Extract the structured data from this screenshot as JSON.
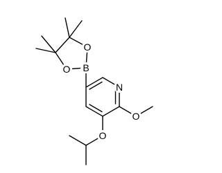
{
  "atoms": [
    {
      "label": "B"
    },
    {
      "label": "O"
    },
    {
      "label": "O"
    },
    {
      "label": "N"
    },
    {
      "label": "O"
    },
    {
      "label": "O"
    }
  ]
}
